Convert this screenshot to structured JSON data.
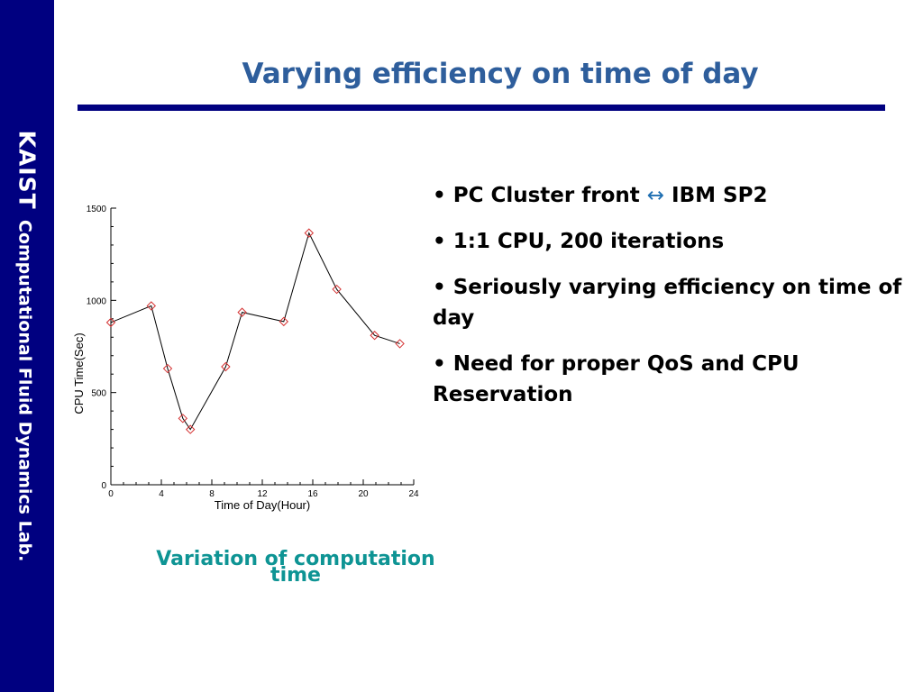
{
  "sidebar": {
    "org": "KAIST",
    "lab": "Computational Fluid Dynamics Lab."
  },
  "slide": {
    "title": "Varying efficiency on time of day",
    "caption": "Variation of computation time",
    "bullets": [
      {
        "pre": "PC Cluster front ",
        "arrow": "↔",
        "post": " IBM SP2"
      },
      {
        "pre": "1:1 CPU, 200 iterations"
      },
      {
        "pre": "Seriously varying efficiency on time of day"
      },
      {
        "pre": "Need for proper QoS and CPU Reservation"
      }
    ]
  },
  "colors": {
    "sidebar": "#000080",
    "title": "#2e5e9c",
    "rule": "#000080",
    "caption": "#0e9494",
    "marker": "#d43030",
    "line": "#000000"
  },
  "chart_data": {
    "type": "line",
    "xlabel": "Time of Day(Hour)",
    "ylabel": "CPU Time(Sec)",
    "xlim": [
      0,
      24
    ],
    "ylim": [
      0,
      1500
    ],
    "xticks": [
      0,
      4,
      8,
      12,
      16,
      20,
      24
    ],
    "yticks": [
      0,
      500,
      1000,
      1500
    ],
    "grid": false,
    "x": [
      0,
      3.2,
      4.5,
      5.7,
      6.3,
      9.1,
      10.4,
      13.7,
      15.7,
      17.9,
      20.9,
      22.9
    ],
    "y": [
      880,
      970,
      630,
      360,
      300,
      640,
      935,
      885,
      1365,
      1060,
      810,
      765
    ]
  }
}
